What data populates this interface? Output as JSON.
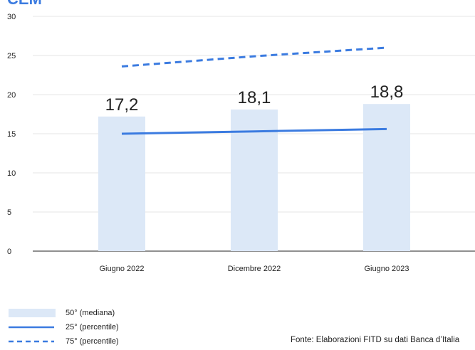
{
  "title": "CEM",
  "source": "Fonte: Elaborazioni FITD su dati Banca d’Italia",
  "colors": {
    "bar": "#dce8f7",
    "line": "#3b7be0",
    "grid": "#e6e6e6",
    "axis": "#222222"
  },
  "chart_data": {
    "type": "bar",
    "categories": [
      "Giugno 2022",
      "Dicembre 2022",
      "Giugno 2023"
    ],
    "ylim": [
      0,
      30
    ],
    "yticks": [
      0,
      5,
      10,
      15,
      20,
      25,
      30
    ],
    "grid": true,
    "legend_position": "bottom-left",
    "series": [
      {
        "name": "50° (mediana)",
        "type": "bar",
        "values": [
          17.2,
          18.1,
          18.8
        ],
        "labels": [
          "17,2",
          "18,1",
          "18,8"
        ]
      },
      {
        "name": "25° (percentile)",
        "type": "line",
        "style": "solid",
        "values": [
          15.0,
          15.3,
          15.6
        ]
      },
      {
        "name": "75° (percentile)",
        "type": "line",
        "style": "dashed",
        "values": [
          23.6,
          24.9,
          26.0
        ]
      }
    ]
  }
}
